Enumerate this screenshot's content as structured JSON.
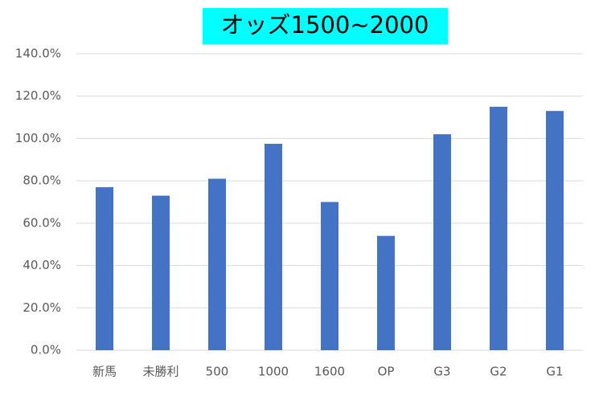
{
  "chart_data": {
    "type": "bar",
    "title": "オッズ1500~2000",
    "categories": [
      "新馬",
      "未勝利",
      "500",
      "1000",
      "1600",
      "OP",
      "G3",
      "G2",
      "G1"
    ],
    "values": [
      77,
      73,
      81,
      97.5,
      70,
      54,
      102,
      115,
      113
    ],
    "color": "#4472c4",
    "ylim": [
      0,
      140
    ],
    "yticks": [
      {
        "value": 0,
        "label": "0.0%"
      },
      {
        "value": 20,
        "label": "20.0%"
      },
      {
        "value": 40,
        "label": "40.0%"
      },
      {
        "value": 60,
        "label": "60.0%"
      },
      {
        "value": 80,
        "label": "80.0%"
      },
      {
        "value": 100,
        "label": "100.0%"
      },
      {
        "value": 120,
        "label": "120.0%"
      },
      {
        "value": 140,
        "label": "140.0%"
      }
    ],
    "grid": true
  }
}
